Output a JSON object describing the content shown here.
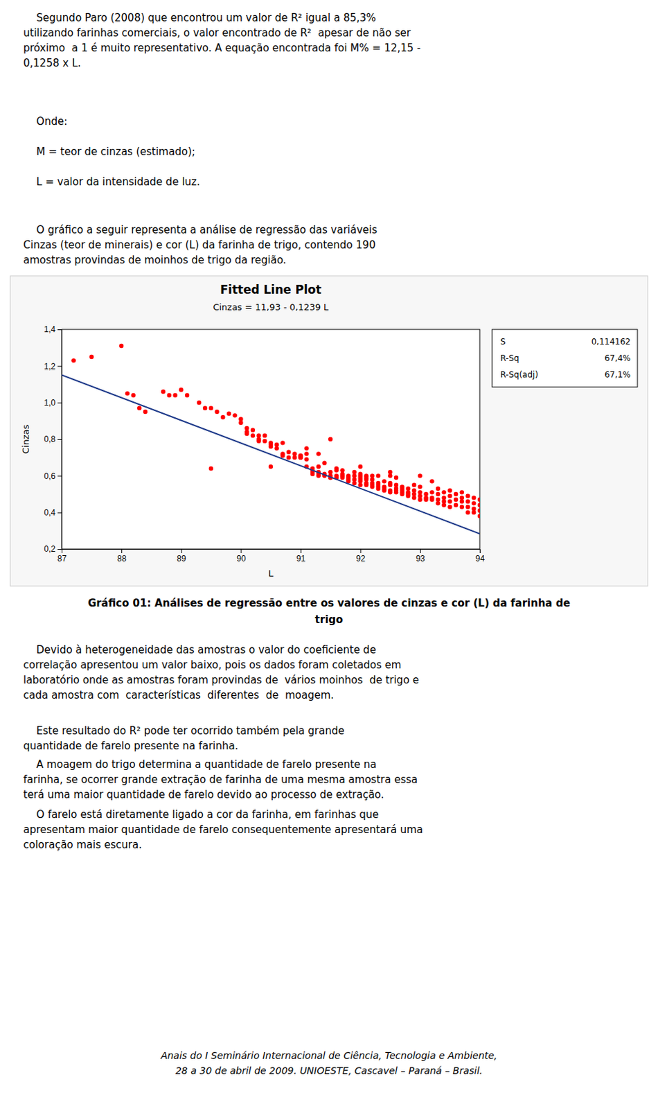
{
  "page_text": {
    "before": [
      [
        "    Segundo Paro (2008) que encontrou um valor de R² igual a 85,3%",
        "utilizando farinhas comerciais, o valor encontrado de R²  apesar de não ser",
        "próximo  a 1 é muito representativo. A equação encontrada foi M% = 12,15 -",
        "0,1258 x L."
      ],
      [
        "    Onde:"
      ],
      [
        "    M = teor de cinzas (estimado);"
      ],
      [
        "    L = valor da intensidade de luz."
      ],
      [
        "    O gráfico a seguir representa a análise de regressão das variáveis",
        "Cinzas (teor de minerais) e cor (L) da farinha de trigo, contendo 190",
        "amostras provindas de moinhos de trigo da região."
      ]
    ],
    "caption": [
      "Gráfico 01: Análises de regressão entre os valores de cinzas e cor (L) da farinha de",
      "trigo"
    ],
    "after": [
      [
        "    Devido à heterogeneidade das amostras o valor do coeficiente de",
        "correlação apresentou um valor baixo, pois os dados foram coletados em",
        "laboratório onde as amostras foram provindas de  vários moinhos  de trigo e",
        "cada amostra com  características  diferentes  de  moagem."
      ],
      [
        "    Este resultado do R² pode ter ocorrido também pela grande",
        "quantidade de farelo presente na farinha."
      ],
      [
        "    A moagem do trigo determina a quantidade de farelo presente na",
        "farinha, se ocorrer grande extração de farinha de uma mesma amostra essa",
        "terá uma maior quantidade de farelo devido ao processo de extração."
      ],
      [
        "    O farelo está diretamente ligado a cor da farinha, em farinhas que",
        "apresentam maior quantidade de farelo consequentemente apresentará uma",
        "coloração mais escura."
      ]
    ],
    "footer": [
      "Anais do I Seminário Internacional de Ciência, Tecnologia e Ambiente,",
      "28 a 30 de abril de 2009. UNIOESTE, Cascavel – Paraná – Brasil."
    ]
  },
  "chart_data": {
    "type": "scatter",
    "title": "Fitted Line Plot",
    "subtitle": "Cinzas = 11,93 - 0,1239 L",
    "xlabel": "L",
    "ylabel": "Cinzas",
    "xlim": [
      87,
      94
    ],
    "ylim": [
      0.2,
      1.4
    ],
    "xticks": [
      87,
      88,
      89,
      90,
      91,
      92,
      93,
      94
    ],
    "yticks": [
      {
        "value": 0.2,
        "label": "0,2"
      },
      {
        "value": 0.4,
        "label": "0,4"
      },
      {
        "value": 0.6,
        "label": "0,6"
      },
      {
        "value": 0.8,
        "label": "0,8"
      },
      {
        "value": 1.0,
        "label": "1,0"
      },
      {
        "value": 1.2,
        "label": "1,2"
      },
      {
        "value": 1.4,
        "label": "1,4"
      }
    ],
    "grid": false,
    "stats": [
      {
        "label": "S",
        "text": "0,114162"
      },
      {
        "label": "R-Sq",
        "text": "67,4%"
      },
      {
        "label": "R-Sq(adj)",
        "text": "67,1%"
      }
    ],
    "series": [
      {
        "type": "scatter",
        "color": "#FF0000",
        "x": [
          87.2,
          87.5,
          88.0,
          88.1,
          88.2,
          88.3,
          88.4,
          88.7,
          88.8,
          88.9,
          89.0,
          89.1,
          89.3,
          89.4,
          89.5,
          89.6,
          89.7,
          89.8,
          89.9,
          90.0,
          90.0,
          90.1,
          90.1,
          90.1,
          90.2,
          90.2,
          90.3,
          90.3,
          90.3,
          90.4,
          90.4,
          90.5,
          90.5,
          90.5,
          90.6,
          90.6,
          90.7,
          90.7,
          90.7,
          90.8,
          90.8,
          90.9,
          90.9,
          91.0,
          91.0,
          91.0,
          91.0,
          91.1,
          91.1,
          91.1,
          91.1,
          91.2,
          91.2,
          91.2,
          91.2,
          91.3,
          91.3,
          91.3,
          91.3,
          91.3,
          91.4,
          91.4,
          91.4,
          91.5,
          91.5,
          91.5,
          91.5,
          91.6,
          91.6,
          91.6,
          91.6,
          91.7,
          91.7,
          91.7,
          91.7,
          91.8,
          91.8,
          91.8,
          91.8,
          91.9,
          91.9,
          91.9,
          91.9,
          92.0,
          92.0,
          92.0,
          92.0,
          92.0,
          92.0,
          92.0,
          92.1,
          92.1,
          92.1,
          92.1,
          92.1,
          92.2,
          92.2,
          92.2,
          92.2,
          92.2,
          92.3,
          92.3,
          92.3,
          92.3,
          92.3,
          92.4,
          92.4,
          92.4,
          92.4,
          92.5,
          92.5,
          92.5,
          92.5,
          92.5,
          92.6,
          92.6,
          92.6,
          92.6,
          92.6,
          92.7,
          92.7,
          92.7,
          92.7,
          92.7,
          92.8,
          92.8,
          92.8,
          92.8,
          92.9,
          92.9,
          92.9,
          92.9,
          93.0,
          93.0,
          93.0,
          93.0,
          93.0,
          93.1,
          93.1,
          93.1,
          93.2,
          93.2,
          93.2,
          93.3,
          93.3,
          93.3,
          93.3,
          93.4,
          93.4,
          93.4,
          93.4,
          93.5,
          93.5,
          93.5,
          93.5,
          93.6,
          93.6,
          93.6,
          93.7,
          93.7,
          93.7,
          93.7,
          93.8,
          93.8,
          93.8,
          93.8,
          93.9,
          93.9,
          93.9,
          93.9,
          94.0,
          94.0,
          94.0,
          94.0,
          89.5,
          90.5,
          91.5,
          92.5,
          93.2
        ],
        "values": [
          1.23,
          1.25,
          1.31,
          1.05,
          1.04,
          0.97,
          0.95,
          1.06,
          1.04,
          1.04,
          1.07,
          1.04,
          1.0,
          0.97,
          0.97,
          0.95,
          0.92,
          0.94,
          0.93,
          0.91,
          0.89,
          0.86,
          0.84,
          0.83,
          0.85,
          0.82,
          0.82,
          0.8,
          0.79,
          0.82,
          0.79,
          0.78,
          0.77,
          0.76,
          0.75,
          0.77,
          0.78,
          0.72,
          0.71,
          0.73,
          0.7,
          0.72,
          0.7,
          0.71,
          0.71,
          0.7,
          0.7,
          0.75,
          0.72,
          0.69,
          0.65,
          0.64,
          0.63,
          0.62,
          0.61,
          0.72,
          0.65,
          0.62,
          0.61,
          0.6,
          0.67,
          0.61,
          0.6,
          0.62,
          0.6,
          0.59,
          0.59,
          0.64,
          0.63,
          0.6,
          0.59,
          0.63,
          0.61,
          0.6,
          0.59,
          0.6,
          0.59,
          0.58,
          0.57,
          0.62,
          0.6,
          0.58,
          0.56,
          0.65,
          0.61,
          0.6,
          0.59,
          0.58,
          0.57,
          0.55,
          0.6,
          0.59,
          0.58,
          0.56,
          0.55,
          0.6,
          0.58,
          0.56,
          0.55,
          0.54,
          0.6,
          0.56,
          0.55,
          0.54,
          0.53,
          0.57,
          0.54,
          0.53,
          0.52,
          0.6,
          0.56,
          0.55,
          0.52,
          0.51,
          0.59,
          0.55,
          0.53,
          0.52,
          0.51,
          0.54,
          0.53,
          0.52,
          0.51,
          0.5,
          0.53,
          0.51,
          0.5,
          0.49,
          0.55,
          0.52,
          0.5,
          0.48,
          0.54,
          0.51,
          0.49,
          0.47,
          0.6,
          0.5,
          0.48,
          0.47,
          0.51,
          0.48,
          0.47,
          0.53,
          0.5,
          0.47,
          0.45,
          0.51,
          0.48,
          0.46,
          0.44,
          0.52,
          0.49,
          0.46,
          0.43,
          0.5,
          0.47,
          0.44,
          0.51,
          0.48,
          0.46,
          0.43,
          0.49,
          0.46,
          0.43,
          0.4,
          0.48,
          0.45,
          0.42,
          0.4,
          0.47,
          0.44,
          0.41,
          0.38,
          0.64,
          0.65,
          0.8,
          0.62,
          0.57
        ]
      },
      {
        "type": "line",
        "color": "#1E3A8A",
        "x": [
          87,
          94
        ],
        "values": [
          1.1507,
          0.2834
        ]
      }
    ]
  }
}
